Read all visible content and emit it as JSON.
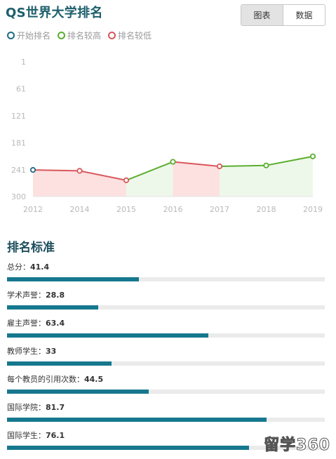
{
  "header": {
    "title": "QS世界大学排名",
    "tabs": [
      "图表",
      "数据"
    ],
    "active_tab": 0
  },
  "legend": [
    {
      "label": "开始排名",
      "color": "#1d6b83"
    },
    {
      "label": "排名较高",
      "color": "#5aaf2e"
    },
    {
      "label": "排名较低",
      "color": "#d9575b"
    }
  ],
  "chart_data": {
    "type": "line",
    "x": [
      "2012",
      "2014",
      "2015",
      "2016",
      "2017",
      "2018",
      "2019"
    ],
    "y_ticks": [
      "1",
      "61",
      "121",
      "181",
      "241",
      "300"
    ],
    "ylim": [
      1,
      300
    ],
    "y_inverted": true,
    "series": [
      {
        "values": [
          241,
          243,
          264,
          223,
          233,
          231,
          211
        ]
      }
    ],
    "colors": {
      "start": "#1d6b83",
      "higher": "#5aaf2e",
      "lower": "#d9575b",
      "higher_fill": "#eef8ea",
      "lower_fill": "#fde0e0"
    }
  },
  "criteria": {
    "title": "排名标准",
    "items": [
      {
        "label": "总分",
        "value": "41.4",
        "score": 41.4
      },
      {
        "label": "学术声誉",
        "value": "28.8",
        "score": 28.8
      },
      {
        "label": "雇主声誉",
        "value": "63.4",
        "score": 63.4
      },
      {
        "label": "教师学生",
        "value": "33",
        "score": 33
      },
      {
        "label": "每个教员的引用次数",
        "value": "44.5",
        "score": 44.5
      },
      {
        "label": "国际学院",
        "value": "81.7",
        "score": 81.7
      },
      {
        "label": "国际学生",
        "value": "76.1",
        "score": 76.1
      }
    ]
  },
  "watermark": "留学360"
}
